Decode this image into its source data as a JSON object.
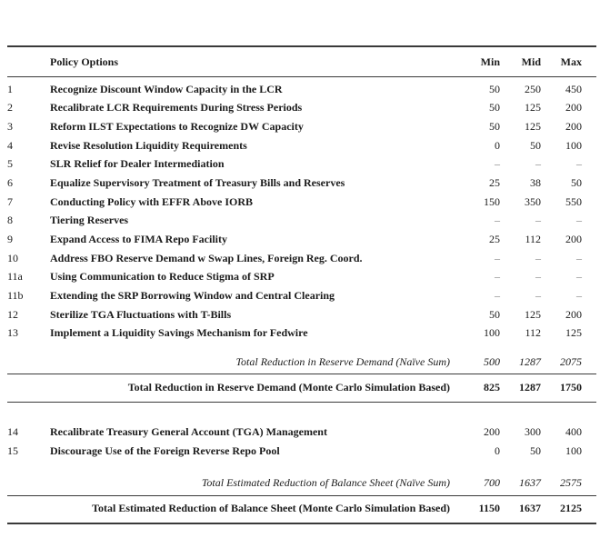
{
  "page": {
    "background": "#ffffff",
    "text_color": "#1b1b1b",
    "rule_color": "#3a3a3a"
  },
  "table": {
    "empty_value": "–",
    "header": {
      "policy": "Policy Options",
      "min": "Min",
      "mid": "Mid",
      "max": "Max"
    },
    "rows_section1": [
      {
        "num": "1",
        "policy": "Recognize Discount Window Capacity in the LCR",
        "min": "50",
        "mid": "250",
        "max": "450"
      },
      {
        "num": "2",
        "policy": "Recalibrate LCR Requirements During Stress Periods",
        "min": "50",
        "mid": "125",
        "max": "200"
      },
      {
        "num": "3",
        "policy": "Reform ILST Expectations to Recognize DW Capacity",
        "min": "50",
        "mid": "125",
        "max": "200"
      },
      {
        "num": "4",
        "policy": "Revise Resolution Liquidity Requirements",
        "min": "0",
        "mid": "50",
        "max": "100"
      },
      {
        "num": "5",
        "policy": "SLR Relief for Dealer Intermediation",
        "min": "–",
        "mid": "–",
        "max": "–"
      },
      {
        "num": "6",
        "policy": "Equalize Supervisory Treatment of Treasury Bills and Reserves",
        "min": "25",
        "mid": "38",
        "max": "50"
      },
      {
        "num": "7",
        "policy": "Conducting Policy with EFFR Above IORB",
        "min": "150",
        "mid": "350",
        "max": "550"
      },
      {
        "num": "8",
        "policy": "Tiering Reserves",
        "min": "–",
        "mid": "–",
        "max": "–"
      },
      {
        "num": "9",
        "policy": "Expand Access to FIMA Repo Facility",
        "min": "25",
        "mid": "112",
        "max": "200"
      },
      {
        "num": "10",
        "policy": "Address FBO Reserve Demand w Swap Lines, Foreign Reg. Coord.",
        "min": "–",
        "mid": "–",
        "max": "–"
      },
      {
        "num": "11a",
        "policy": "Using Communication to Reduce Stigma of SRP",
        "min": "–",
        "mid": "–",
        "max": "–"
      },
      {
        "num": "11b",
        "policy": "Extending the SRP Borrowing Window and Central Clearing",
        "min": "–",
        "mid": "–",
        "max": "–"
      },
      {
        "num": "12",
        "policy": "Sterilize TGA Fluctuations with T-Bills",
        "min": "50",
        "mid": "125",
        "max": "200"
      },
      {
        "num": "13",
        "policy": "Implement a Liquidity Savings Mechanism for Fedwire",
        "min": "100",
        "mid": "112",
        "max": "125"
      }
    ],
    "totals_section1": {
      "naive_label": "Total Reduction in Reserve Demand (Naïve Sum)",
      "naive_min": "500",
      "naive_mid": "1287",
      "naive_max": "2075",
      "mc_label": "Total Reduction in Reserve Demand (Monte Carlo Simulation Based)",
      "mc_min": "825",
      "mc_mid": "1287",
      "mc_max": "1750"
    },
    "rows_section2": [
      {
        "num": "14",
        "policy": "Recalibrate Treasury General Account (TGA) Management",
        "min": "200",
        "mid": "300",
        "max": "400"
      },
      {
        "num": "15",
        "policy": "Discourage Use of the Foreign Reverse Repo Pool",
        "min": "0",
        "mid": "50",
        "max": "100"
      }
    ],
    "totals_section2": {
      "naive_label": "Total Estimated Reduction of Balance Sheet (Naïve Sum)",
      "naive_min": "700",
      "naive_mid": "1637",
      "naive_max": "2575",
      "mc_label": "Total Estimated Reduction of Balance Sheet (Monte Carlo Simulation Based)",
      "mc_min": "1150",
      "mc_mid": "1637",
      "mc_max": "2125"
    }
  }
}
